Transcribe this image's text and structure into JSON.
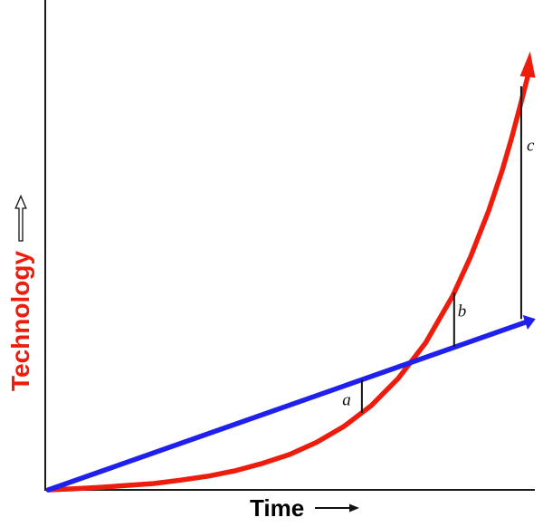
{
  "chart_data": {
    "type": "line",
    "title": "",
    "xlabel": "Time",
    "ylabel": "Technology",
    "xlabel_color": "#000000",
    "ylabel_color": "#ee1c0c",
    "axis_color": "#1a1a1a",
    "annotation_color": "#111111",
    "background": "#ffffff",
    "has_grid": false,
    "has_ticks": false,
    "x_range": [
      0,
      1
    ],
    "y_range": [
      0,
      1
    ],
    "legend": "none",
    "series": [
      {
        "id": "technology-curve",
        "shape": "exponential",
        "color": "#ee1c0c",
        "width": 5.5,
        "arrow": true,
        "tip": [
          0.983,
          0.895
        ],
        "points": [
          [
            0.006,
            0.0
          ],
          [
            0.055,
            0.002
          ],
          [
            0.11,
            0.005
          ],
          [
            0.165,
            0.009
          ],
          [
            0.22,
            0.013
          ],
          [
            0.275,
            0.02
          ],
          [
            0.33,
            0.028
          ],
          [
            0.385,
            0.039
          ],
          [
            0.44,
            0.054
          ],
          [
            0.495,
            0.072
          ],
          [
            0.55,
            0.097
          ],
          [
            0.606,
            0.13
          ],
          [
            0.661,
            0.172
          ],
          [
            0.716,
            0.228
          ],
          [
            0.771,
            0.3
          ],
          [
            0.826,
            0.396
          ],
          [
            0.862,
            0.475
          ],
          [
            0.899,
            0.57
          ],
          [
            0.927,
            0.654
          ],
          [
            0.945,
            0.716
          ],
          [
            0.963,
            0.784
          ],
          [
            0.978,
            0.843
          ]
        ]
      },
      {
        "id": "linear-line",
        "shape": "linear",
        "color": "#2020ee",
        "width": 5.5,
        "arrow": true,
        "tip": [
          0.994,
          0.349
        ],
        "points": [
          [
            0.006,
            0.0
          ],
          [
            0.973,
            0.342
          ]
        ]
      }
    ],
    "gap_markers": [
      {
        "label": "a",
        "x": 0.642,
        "y_from": 0.157,
        "y_to": 0.225,
        "label_x": 0.611,
        "label_y": 0.181
      },
      {
        "label": "b",
        "x": 0.829,
        "y_from": 0.292,
        "y_to": 0.403,
        "label_x": 0.845,
        "label_y": 0.362
      },
      {
        "label": "c",
        "x": 0.965,
        "y_from": 0.349,
        "y_to": 0.824,
        "label_x": 0.984,
        "label_y": 0.7
      }
    ]
  }
}
